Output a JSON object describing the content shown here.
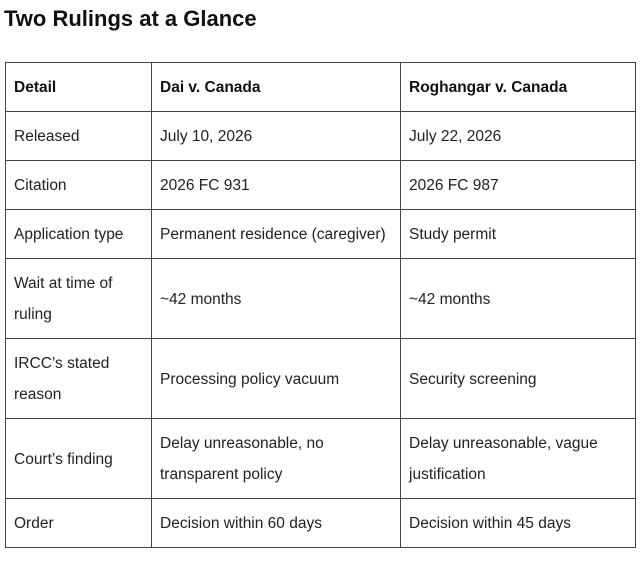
{
  "title": "Two Rulings at a Glance",
  "table": {
    "headers": [
      "Detail",
      "Dai v. Canada",
      "Roghangar v. Canada"
    ],
    "rows": [
      [
        "Released",
        "July 10, 2026",
        "July 22, 2026"
      ],
      [
        "Citation",
        "2026 FC 931",
        "2026 FC 987"
      ],
      [
        "Application type",
        "Permanent residence (caregiver)",
        "Study permit"
      ],
      [
        "Wait at time of ruling",
        "~42 months",
        "~42 months"
      ],
      [
        "IRCC’s stated reason",
        "Processing policy vacuum",
        "Security screening"
      ],
      [
        "Court’s finding",
        "Delay unreasonable, no transparent policy",
        "Delay unreasonable, vague justification"
      ],
      [
        "Order",
        "Decision within 60 days",
        "Decision within 45 days"
      ]
    ]
  }
}
